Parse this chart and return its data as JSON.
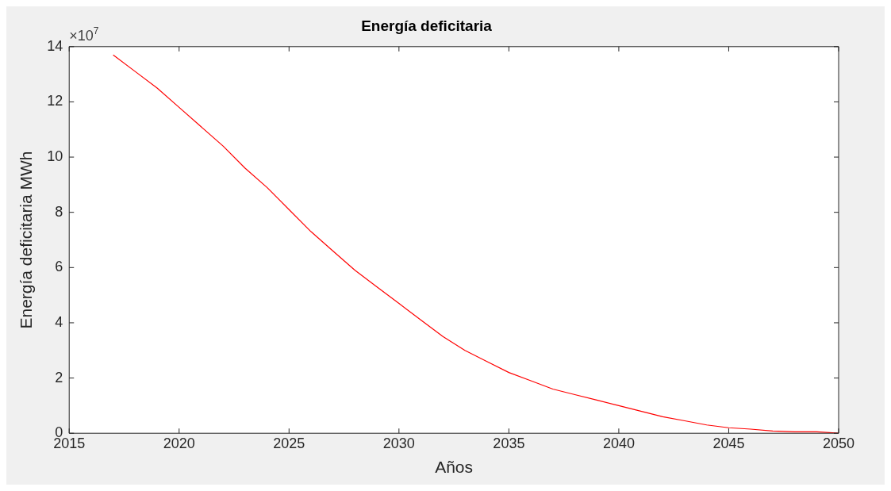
{
  "chart_data": {
    "type": "line",
    "title": "Energía deficitaria",
    "xlabel": "Años",
    "ylabel": "Energía deficitaria MWh",
    "annotations": [
      "×10$^{7}$"
    ],
    "x": [
      2017,
      2018,
      2019,
      2020,
      2021,
      2022,
      2023,
      2024,
      2025,
      2026,
      2027,
      2028,
      2029,
      2030,
      2031,
      2032,
      2033,
      2034,
      2035,
      2036,
      2037,
      2038,
      2039,
      2040,
      2041,
      2042,
      2043,
      2044,
      2045,
      2046,
      2047,
      2048,
      2049,
      2050
    ],
    "series": [
      {
        "color": "#ff0000",
        "values": [
          13.7,
          13.1,
          12.5,
          11.8,
          11.1,
          10.4,
          9.6,
          8.9,
          8.1,
          7.3,
          6.6,
          5.9,
          5.3,
          4.7,
          4.1,
          3.5,
          3.0,
          2.6,
          2.2,
          1.9,
          1.6,
          1.4,
          1.2,
          1.0,
          0.8,
          0.6,
          0.45,
          0.3,
          0.2,
          0.15,
          0.08,
          0.05,
          0.05,
          0
        ]
      }
    ],
    "xlim": [
      2015,
      2050
    ],
    "xticks": [
      2015,
      2020,
      2025,
      2030,
      2035,
      2040,
      2045,
      2050
    ],
    "ylim": [
      0,
      14
    ],
    "yticks": [
      0,
      2,
      4,
      6,
      8,
      10,
      12,
      14
    ],
    "grid": false,
    "legend": false,
    "marker": "none",
    "line_style": "solid"
  }
}
